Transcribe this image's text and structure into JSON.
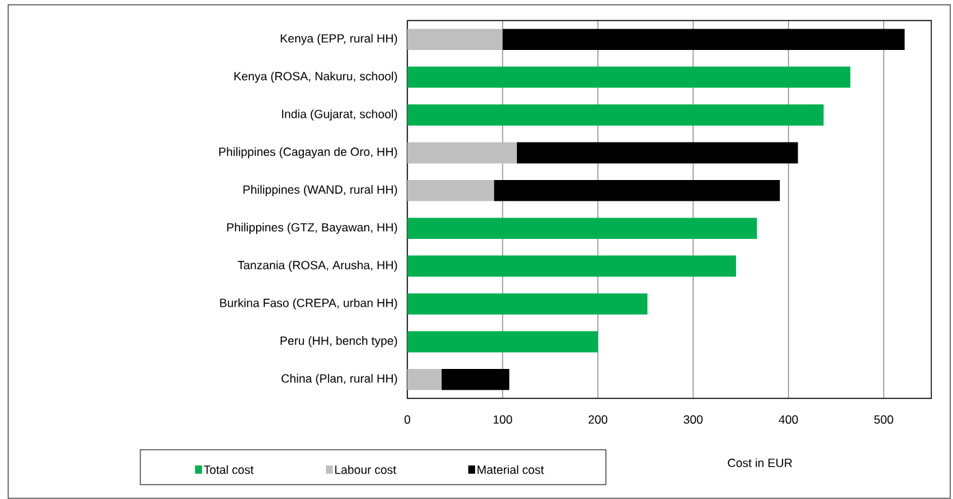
{
  "chart_data": {
    "type": "bar",
    "orientation": "horizontal",
    "stacked": true,
    "categories": [
      "Kenya (EPP, rural HH)",
      "Kenya (ROSA, Nakuru, school)",
      "India (Gujarat, school)",
      "Philippines (Cagayan de Oro, HH)",
      "Philippines (WAND, rural HH)",
      "Philippines (GTZ, Bayawan, HH)",
      "Tanzania (ROSA, Arusha, HH)",
      "Burkina Faso (CREPA, urban HH)",
      "Peru (HH, bench type)",
      "China (Plan, rural HH)"
    ],
    "series": [
      {
        "name": "Total cost",
        "color": "#00b050",
        "values": [
          null,
          465,
          437,
          null,
          null,
          367,
          345,
          252,
          200,
          null
        ]
      },
      {
        "name": "Labour cost",
        "color": "#bfbfbf",
        "values": [
          100,
          null,
          null,
          115,
          91,
          null,
          null,
          null,
          null,
          36
        ]
      },
      {
        "name": "Material cost",
        "color": "#000000",
        "values": [
          422,
          null,
          null,
          295,
          300,
          null,
          null,
          null,
          null,
          71
        ]
      }
    ],
    "xlim": [
      0,
      550
    ],
    "xticks": [
      0,
      100,
      200,
      300,
      400,
      500
    ],
    "xlabel": "Cost in EUR",
    "grid": "x",
    "legend": "bottom"
  }
}
